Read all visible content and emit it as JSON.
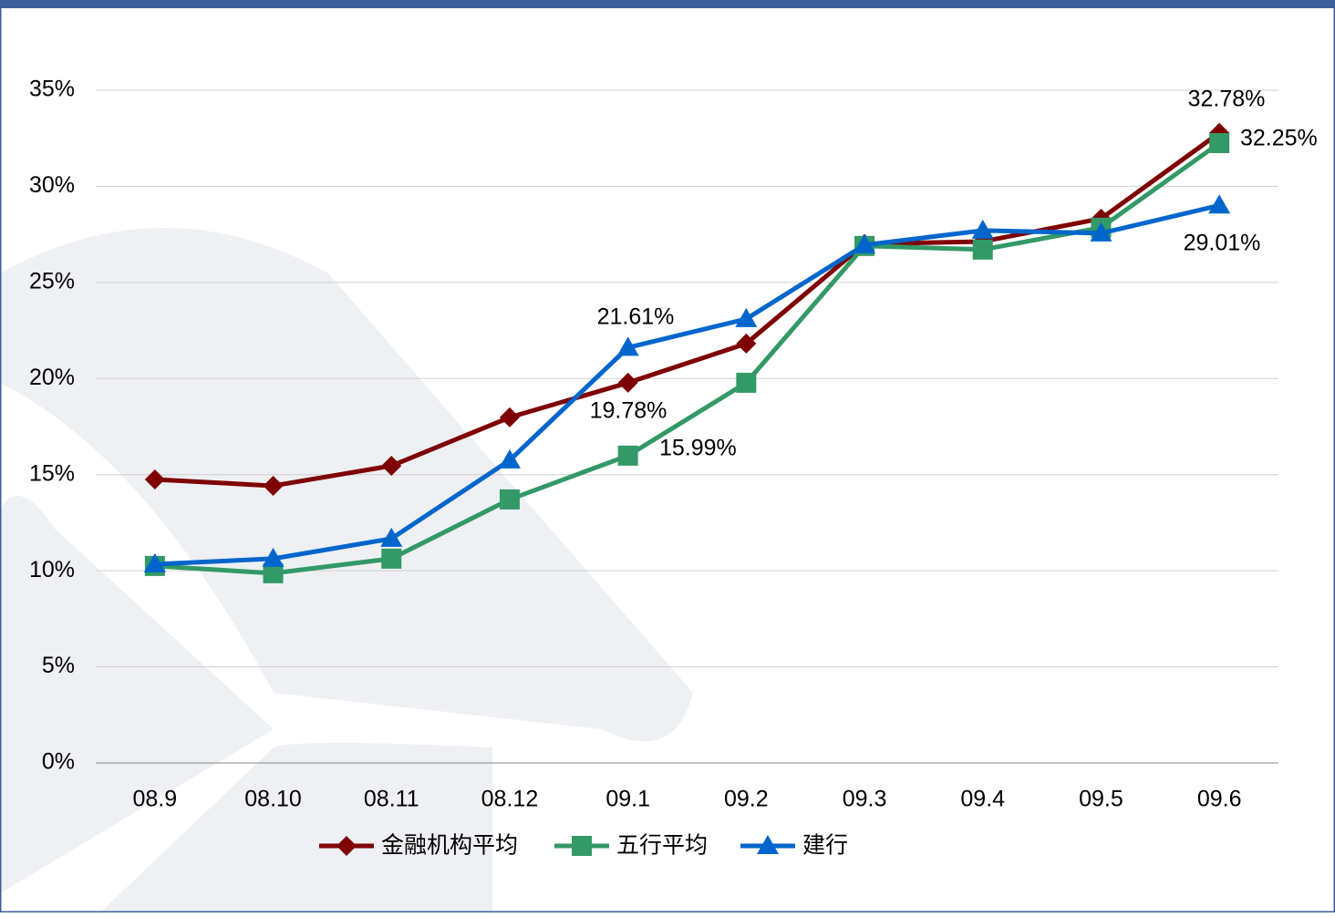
{
  "chart_data": {
    "type": "line",
    "categories": [
      "08.9",
      "08.10",
      "08.11",
      "08.12",
      "09.1",
      "09.2",
      "09.3",
      "09.4",
      "09.5",
      "09.6"
    ],
    "series": [
      {
        "name": "金融机构平均",
        "color": "#7f0000",
        "marker": "diamond",
        "values": [
          14.75,
          14.42,
          15.46,
          17.98,
          19.78,
          21.82,
          27.0,
          27.13,
          28.32,
          32.78
        ],
        "value_labels": [
          null,
          null,
          null,
          null,
          "19.78%",
          null,
          null,
          null,
          null,
          "32.78%"
        ]
      },
      {
        "name": "五行平均",
        "color": "#339966",
        "marker": "square",
        "values": [
          10.25,
          9.87,
          10.63,
          13.71,
          15.99,
          19.78,
          26.9,
          26.71,
          27.85,
          32.25
        ],
        "value_labels": [
          null,
          null,
          null,
          null,
          "15.99%",
          null,
          null,
          null,
          null,
          "32.25%"
        ]
      },
      {
        "name": "建行",
        "color": "#0066cc",
        "marker": "triangle",
        "values": [
          10.34,
          10.63,
          11.67,
          15.75,
          21.61,
          23.1,
          26.95,
          27.7,
          27.56,
          29.01
        ],
        "value_labels": [
          null,
          null,
          null,
          null,
          "21.61%",
          null,
          null,
          null,
          null,
          "29.01%"
        ]
      }
    ],
    "ylim": [
      0,
      35
    ],
    "yticks": [
      {
        "value": 0,
        "label": "0%"
      },
      {
        "value": 5,
        "label": "5%"
      },
      {
        "value": 10,
        "label": "10%"
      },
      {
        "value": 15,
        "label": "15%"
      },
      {
        "value": 20,
        "label": "20%"
      },
      {
        "value": 25,
        "label": "25%"
      },
      {
        "value": 30,
        "label": "30%"
      },
      {
        "value": 35,
        "label": "35%"
      }
    ],
    "grid": true,
    "legend": "bottom"
  }
}
